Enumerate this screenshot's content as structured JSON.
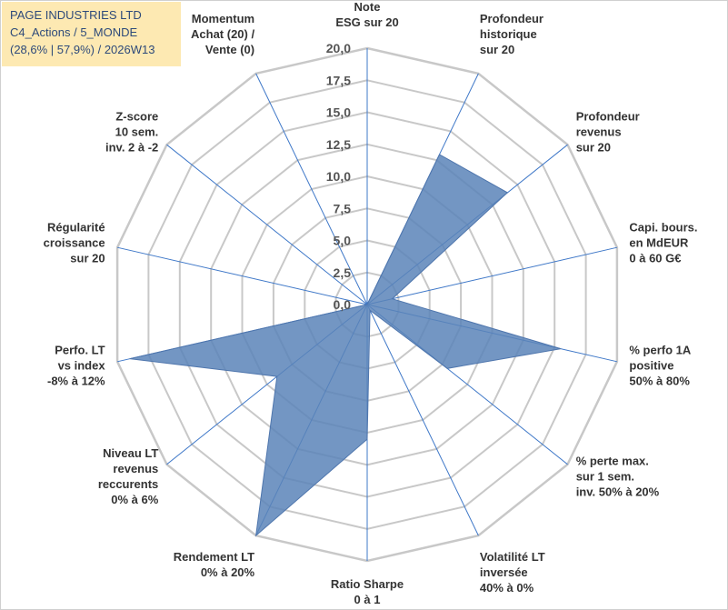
{
  "header": {
    "line1": "PAGE INDUSTRIES LTD",
    "line2": "C4_Actions / 5_MONDE",
    "line3": "(28,6% | 57,9%) / 2026W13"
  },
  "colors": {
    "fill": "#5b84b8",
    "stroke": "#4f76ad",
    "grid": "#c8c8c8",
    "spoke": "#3f78c8",
    "header_bg": "#fde9b2",
    "header_text": "#2e4a7a"
  },
  "chart_data": {
    "type": "radar",
    "title": "",
    "rmax": 20,
    "ticks": [
      "0,0",
      "2,5",
      "5,0",
      "7,5",
      "10,0",
      "12,5",
      "15,0",
      "17,5",
      "20,0"
    ],
    "axes": [
      {
        "label": [
          "Note",
          "ESG sur 20"
        ],
        "value": 0
      },
      {
        "label": [
          "Profondeur",
          "historique",
          "sur 20"
        ],
        "value": 13
      },
      {
        "label": [
          "Profondeur",
          "revenus",
          "sur 20"
        ],
        "value": 14
      },
      {
        "label": [
          "Capi. bours.",
          "en MdEUR",
          "0 à 60 G€"
        ],
        "value": 2
      },
      {
        "label": [
          "% perfo 1A",
          "positive",
          "50% à 80%"
        ],
        "value": 15.5
      },
      {
        "label": [
          "% perte max.",
          "sur 1 sem.",
          "inv. 50% à 20%"
        ],
        "value": 8
      },
      {
        "label": [
          "Volatilité LT",
          "inversée",
          "40% à 0%"
        ],
        "value": 0.5
      },
      {
        "label": [
          "Ratio Sharpe",
          "0 à 1"
        ],
        "value": 10.5
      },
      {
        "label": [
          "Rendement LT",
          "0% à 20%"
        ],
        "value": 20
      },
      {
        "label": [
          "Niveau LT",
          "revenus",
          "reccurents",
          "0% à 6%"
        ],
        "value": 9
      },
      {
        "label": [
          "Perfo. LT",
          "vs index",
          "-8% à 12%"
        ],
        "value": 19
      },
      {
        "label": [
          "Régularité",
          "croissance",
          "sur 20"
        ],
        "value": 0
      },
      {
        "label": [
          "Z-score",
          "10 sem.",
          "inv. 2 à -2"
        ],
        "value": 0
      },
      {
        "label": [
          "Momentum",
          "Achat (20) /",
          "Vente (0)"
        ],
        "value": 0
      }
    ]
  }
}
